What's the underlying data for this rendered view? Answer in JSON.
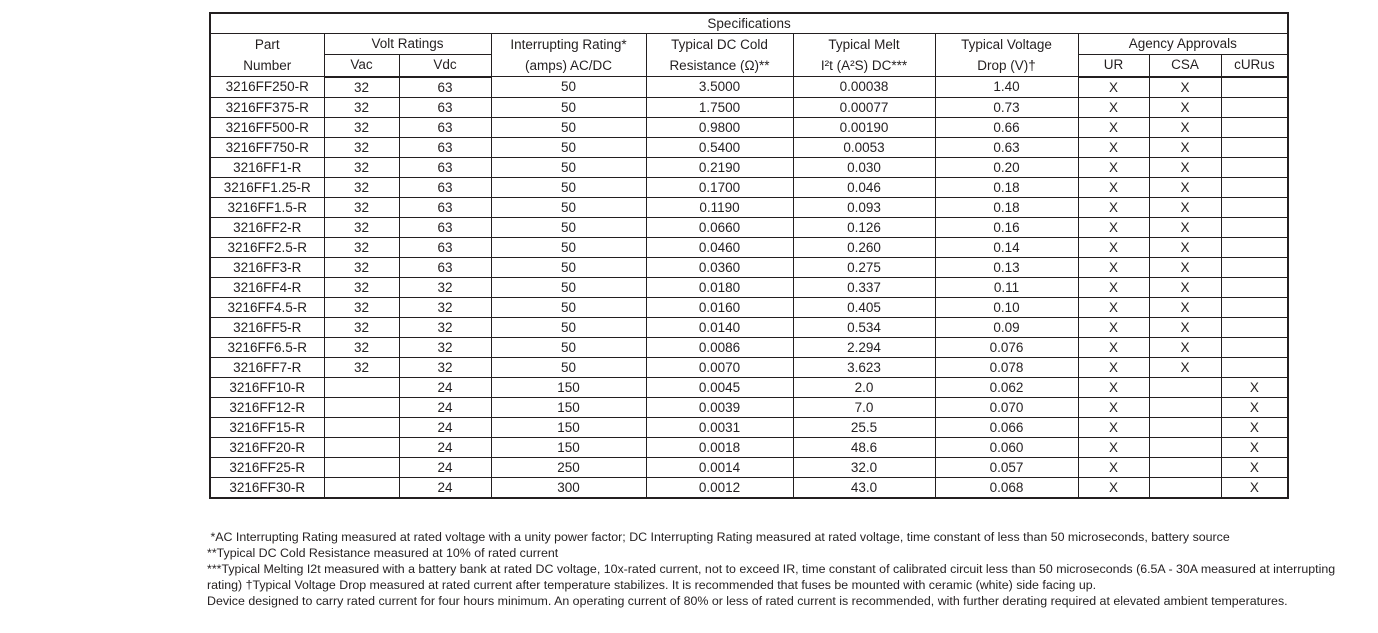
{
  "title": "Specifications",
  "table": {
    "header": {
      "part": [
        "Part",
        "Number"
      ],
      "volt_group": "Volt Ratings",
      "vac": "Vac",
      "vdc": "Vdc",
      "interrupting": [
        "Interrupting Rating*",
        "(amps) AC/DC"
      ],
      "resistance": [
        "Typical DC Cold",
        "Resistance (Ω)**"
      ],
      "melt": [
        "Typical Melt",
        "I²t (A²S) DC***"
      ],
      "drop": [
        "Typical Voltage",
        "Drop (V)†"
      ],
      "agency_group": "Agency Approvals",
      "ur": "UR",
      "csa": "CSA",
      "curus": "cURus"
    },
    "rows": [
      {
        "part": "3216FF250-R",
        "vac": "32",
        "vdc": "63",
        "ir": "50",
        "res": "3.5000",
        "melt": "0.00038",
        "drop": "1.40",
        "ur": "X",
        "csa": "X",
        "curus": ""
      },
      {
        "part": "3216FF375-R",
        "vac": "32",
        "vdc": "63",
        "ir": "50",
        "res": "1.7500",
        "melt": "0.00077",
        "drop": "0.73",
        "ur": "X",
        "csa": "X",
        "curus": ""
      },
      {
        "part": "3216FF500-R",
        "vac": "32",
        "vdc": "63",
        "ir": "50",
        "res": "0.9800",
        "melt": "0.00190",
        "drop": "0.66",
        "ur": "X",
        "csa": "X",
        "curus": ""
      },
      {
        "part": "3216FF750-R",
        "vac": "32",
        "vdc": "63",
        "ir": "50",
        "res": "0.5400",
        "melt": "0.0053",
        "drop": "0.63",
        "ur": "X",
        "csa": "X",
        "curus": ""
      },
      {
        "part": "3216FF1-R",
        "vac": "32",
        "vdc": "63",
        "ir": "50",
        "res": "0.2190",
        "melt": "0.030",
        "drop": "0.20",
        "ur": "X",
        "csa": "X",
        "curus": ""
      },
      {
        "part": "3216FF1.25-R",
        "vac": "32",
        "vdc": "63",
        "ir": "50",
        "res": "0.1700",
        "melt": "0.046",
        "drop": "0.18",
        "ur": "X",
        "csa": "X",
        "curus": ""
      },
      {
        "part": "3216FF1.5-R",
        "vac": "32",
        "vdc": "63",
        "ir": "50",
        "res": "0.1190",
        "melt": "0.093",
        "drop": "0.18",
        "ur": "X",
        "csa": "X",
        "curus": ""
      },
      {
        "part": "3216FF2-R",
        "vac": "32",
        "vdc": "63",
        "ir": "50",
        "res": "0.0660",
        "melt": "0.126",
        "drop": "0.16",
        "ur": "X",
        "csa": "X",
        "curus": ""
      },
      {
        "part": "3216FF2.5-R",
        "vac": "32",
        "vdc": "63",
        "ir": "50",
        "res": "0.0460",
        "melt": "0.260",
        "drop": "0.14",
        "ur": "X",
        "csa": "X",
        "curus": ""
      },
      {
        "part": "3216FF3-R",
        "vac": "32",
        "vdc": "63",
        "ir": "50",
        "res": "0.0360",
        "melt": "0.275",
        "drop": "0.13",
        "ur": "X",
        "csa": "X",
        "curus": ""
      },
      {
        "part": "3216FF4-R",
        "vac": "32",
        "vdc": "32",
        "ir": "50",
        "res": "0.0180",
        "melt": "0.337",
        "drop": "0.11",
        "ur": "X",
        "csa": "X",
        "curus": ""
      },
      {
        "part": "3216FF4.5-R",
        "vac": "32",
        "vdc": "32",
        "ir": "50",
        "res": "0.0160",
        "melt": "0.405",
        "drop": "0.10",
        "ur": "X",
        "csa": "X",
        "curus": ""
      },
      {
        "part": "3216FF5-R",
        "vac": "32",
        "vdc": "32",
        "ir": "50",
        "res": "0.0140",
        "melt": "0.534",
        "drop": "0.09",
        "ur": "X",
        "csa": "X",
        "curus": ""
      },
      {
        "part": "3216FF6.5-R",
        "vac": "32",
        "vdc": "32",
        "ir": "50",
        "res": "0.0086",
        "melt": "2.294",
        "drop": "0.076",
        "ur": "X",
        "csa": "X",
        "curus": ""
      },
      {
        "part": "3216FF7-R",
        "vac": "32",
        "vdc": "32",
        "ir": "50",
        "res": "0.0070",
        "melt": "3.623",
        "drop": "0.078",
        "ur": "X",
        "csa": "X",
        "curus": ""
      },
      {
        "part": "3216FF10-R",
        "vac": "",
        "vdc": "24",
        "ir": "150",
        "res": "0.0045",
        "melt": "2.0",
        "drop": "0.062",
        "ur": "X",
        "csa": "",
        "curus": "X"
      },
      {
        "part": "3216FF12-R",
        "vac": "",
        "vdc": "24",
        "ir": "150",
        "res": "0.0039",
        "melt": "7.0",
        "drop": "0.070",
        "ur": "X",
        "csa": "",
        "curus": "X"
      },
      {
        "part": "3216FF15-R",
        "vac": "",
        "vdc": "24",
        "ir": "150",
        "res": "0.0031",
        "melt": "25.5",
        "drop": "0.066",
        "ur": "X",
        "csa": "",
        "curus": "X"
      },
      {
        "part": "3216FF20-R",
        "vac": "",
        "vdc": "24",
        "ir": "150",
        "res": "0.0018",
        "melt": "48.6",
        "drop": "0.060",
        "ur": "X",
        "csa": "",
        "curus": "X"
      },
      {
        "part": "3216FF25-R",
        "vac": "",
        "vdc": "24",
        "ir": "250",
        "res": "0.0014",
        "melt": "32.0",
        "drop": "0.057",
        "ur": "X",
        "csa": "",
        "curus": "X"
      },
      {
        "part": "3216FF30-R",
        "vac": "",
        "vdc": "24",
        "ir": "300",
        "res": "0.0012",
        "melt": "43.0",
        "drop": "0.068",
        "ur": "X",
        "csa": "",
        "curus": "X"
      }
    ]
  },
  "footnotes": [
    " *AC Interrupting Rating measured at rated voltage with a unity power factor; DC Interrupting Rating measured at rated voltage, time constant of less than 50 microseconds, battery source",
    "**Typical DC Cold Resistance measured at 10% of rated current",
    "***Typical Melting I2t measured with a battery bank at rated DC voltage, 10x-rated current, not to exceed IR, time constant of calibrated circuit less than 50 microseconds (6.5A - 30A measured at interrupting",
    "rating) †Typical Voltage Drop measured at rated current after temperature stabilizes. It is recommended that fuses be mounted with ceramic (white) side facing up.",
    "Device designed to carry rated current for four hours minimum. An operating current of 80% or less of rated current is recommended, with further derating required at elevated ambient temperatures."
  ]
}
